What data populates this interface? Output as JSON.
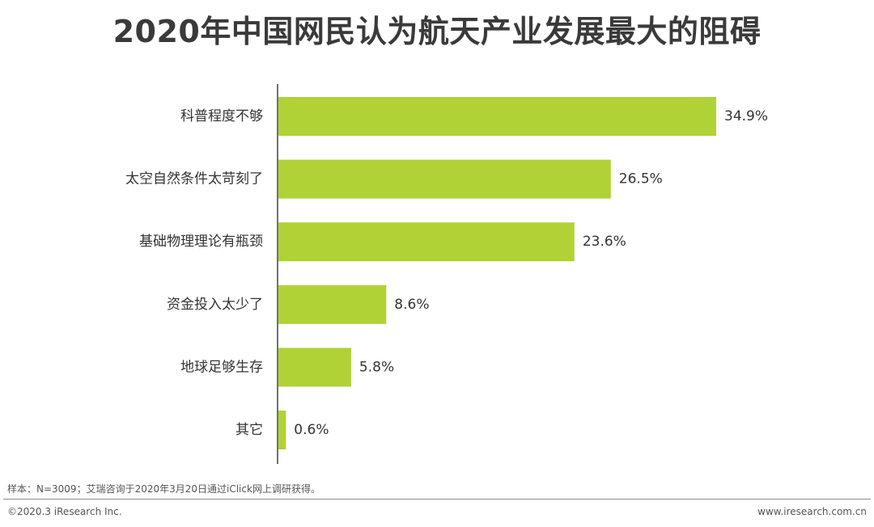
{
  "chart_data": {
    "type": "bar",
    "orientation": "horizontal",
    "title": "2020年中国网民认为航天产业发展最大的阻碍",
    "categories": [
      "科普程度不够",
      "太空自然条件太苛刻了",
      "基础物理理论有瓶颈",
      "资金投入太少了",
      "地球足够生存",
      "其它"
    ],
    "values": [
      34.9,
      26.5,
      23.6,
      8.6,
      5.8,
      0.6
    ],
    "value_labels": [
      "34.9%",
      "26.5%",
      "23.6%",
      "8.6%",
      "5.8%",
      "0.6%"
    ],
    "unit": "%",
    "xlim": [
      0,
      40
    ],
    "grid": false,
    "legend": "none",
    "bar_color": "#b0d236",
    "axis_color": "#444444"
  },
  "footer": {
    "note": "样本：N=3009；艾瑞咨询于2020年3月20日通过iClick网上调研获得。",
    "copyright": "©2020.3 iResearch Inc.",
    "website": "www.iresearch.com.cn"
  }
}
